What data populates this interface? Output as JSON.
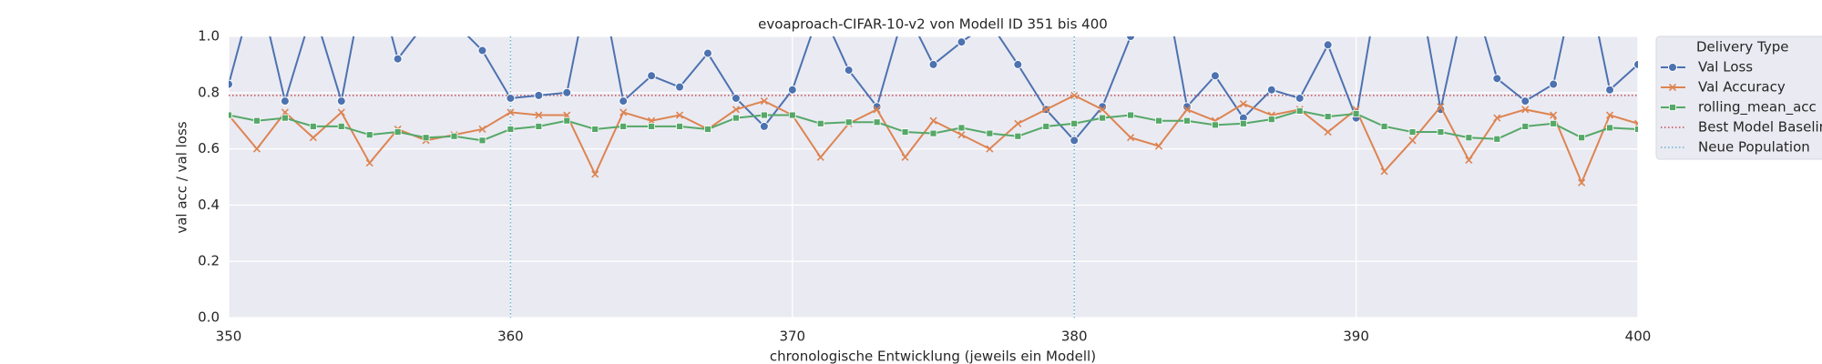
{
  "chart_data": {
    "type": "line",
    "title": "evoaproach-CIFAR-10-v2 von Modell ID 351 bis 400",
    "x_label": "chronologische Entwicklung (jeweils ein Modell)",
    "y_label": "val acc / val loss",
    "legend_title": "Delivery Type",
    "legend_position": "upper right outside",
    "grid": true,
    "x": [
      350,
      351,
      352,
      353,
      354,
      355,
      356,
      357,
      358,
      359,
      360,
      361,
      362,
      363,
      364,
      365,
      366,
      367,
      368,
      369,
      370,
      371,
      372,
      373,
      374,
      375,
      376,
      377,
      378,
      379,
      380,
      381,
      382,
      383,
      384,
      385,
      386,
      387,
      388,
      389,
      390,
      391,
      392,
      393,
      394,
      395,
      396,
      397,
      398,
      399,
      400
    ],
    "xlim": [
      350,
      400
    ],
    "xticks": [
      350,
      360,
      370,
      380,
      390,
      400
    ],
    "ylim": [
      0,
      1
    ],
    "yticks": [
      {
        "value": 0,
        "label": "0.0"
      },
      0.2,
      0.4,
      0.6,
      0.8,
      {
        "value": 1,
        "label": "1.0"
      }
    ],
    "series": [
      {
        "name": "Val Loss",
        "color": "#4c72b0",
        "marker": "circle",
        "values": [
          0.83,
          1.2,
          0.77,
          1.1,
          0.77,
          1.3,
          0.92,
          1.05,
          1.05,
          0.95,
          0.78,
          0.79,
          0.8,
          1.3,
          0.77,
          0.86,
          0.82,
          0.94,
          0.78,
          0.68,
          0.81,
          1.1,
          0.88,
          0.75,
          1.1,
          0.9,
          0.98,
          1.05,
          0.9,
          0.74,
          0.63,
          0.75,
          1.0,
          1.3,
          0.75,
          0.86,
          0.71,
          0.81,
          0.78,
          0.97,
          0.71,
          1.3,
          1.3,
          0.74,
          1.2,
          0.85,
          0.77,
          0.83,
          1.3,
          0.81,
          0.9
        ]
      },
      {
        "name": "Val Accuracy",
        "color": "#dd8452",
        "marker": "x",
        "values": [
          0.72,
          0.6,
          0.73,
          0.64,
          0.73,
          0.55,
          0.67,
          0.63,
          0.65,
          0.67,
          0.73,
          0.72,
          0.72,
          0.51,
          0.73,
          0.7,
          0.72,
          0.67,
          0.74,
          0.77,
          0.72,
          0.57,
          0.69,
          0.74,
          0.57,
          0.7,
          0.65,
          0.6,
          0.69,
          0.74,
          0.79,
          0.74,
          0.64,
          0.61,
          0.74,
          0.7,
          0.76,
          0.72,
          0.74,
          0.66,
          0.74,
          0.52,
          0.63,
          0.75,
          0.56,
          0.71,
          0.74,
          0.72,
          0.48,
          0.72,
          0.69
        ]
      },
      {
        "name": "rolling_mean_acc",
        "color": "#55a868",
        "marker": "square",
        "values": [
          0.72,
          0.7,
          0.71,
          0.68,
          0.68,
          0.65,
          0.66,
          0.64,
          0.645,
          0.63,
          0.67,
          0.68,
          0.7,
          0.67,
          0.68,
          0.68,
          0.68,
          0.67,
          0.71,
          0.72,
          0.72,
          0.69,
          0.695,
          0.695,
          0.66,
          0.655,
          0.675,
          0.655,
          0.645,
          0.68,
          0.69,
          0.71,
          0.72,
          0.7,
          0.7,
          0.685,
          0.69,
          0.705,
          0.735,
          0.715,
          0.725,
          0.68,
          0.66,
          0.66,
          0.64,
          0.635,
          0.68,
          0.69,
          0.64,
          0.675,
          0.67
        ]
      }
    ],
    "baseline": {
      "name": "Best Model Baseline",
      "value": 0.79,
      "color": "#c44e52"
    },
    "population": {
      "name": "Neue Population",
      "x": [
        360,
        380
      ],
      "color": "#64b5cd"
    }
  }
}
